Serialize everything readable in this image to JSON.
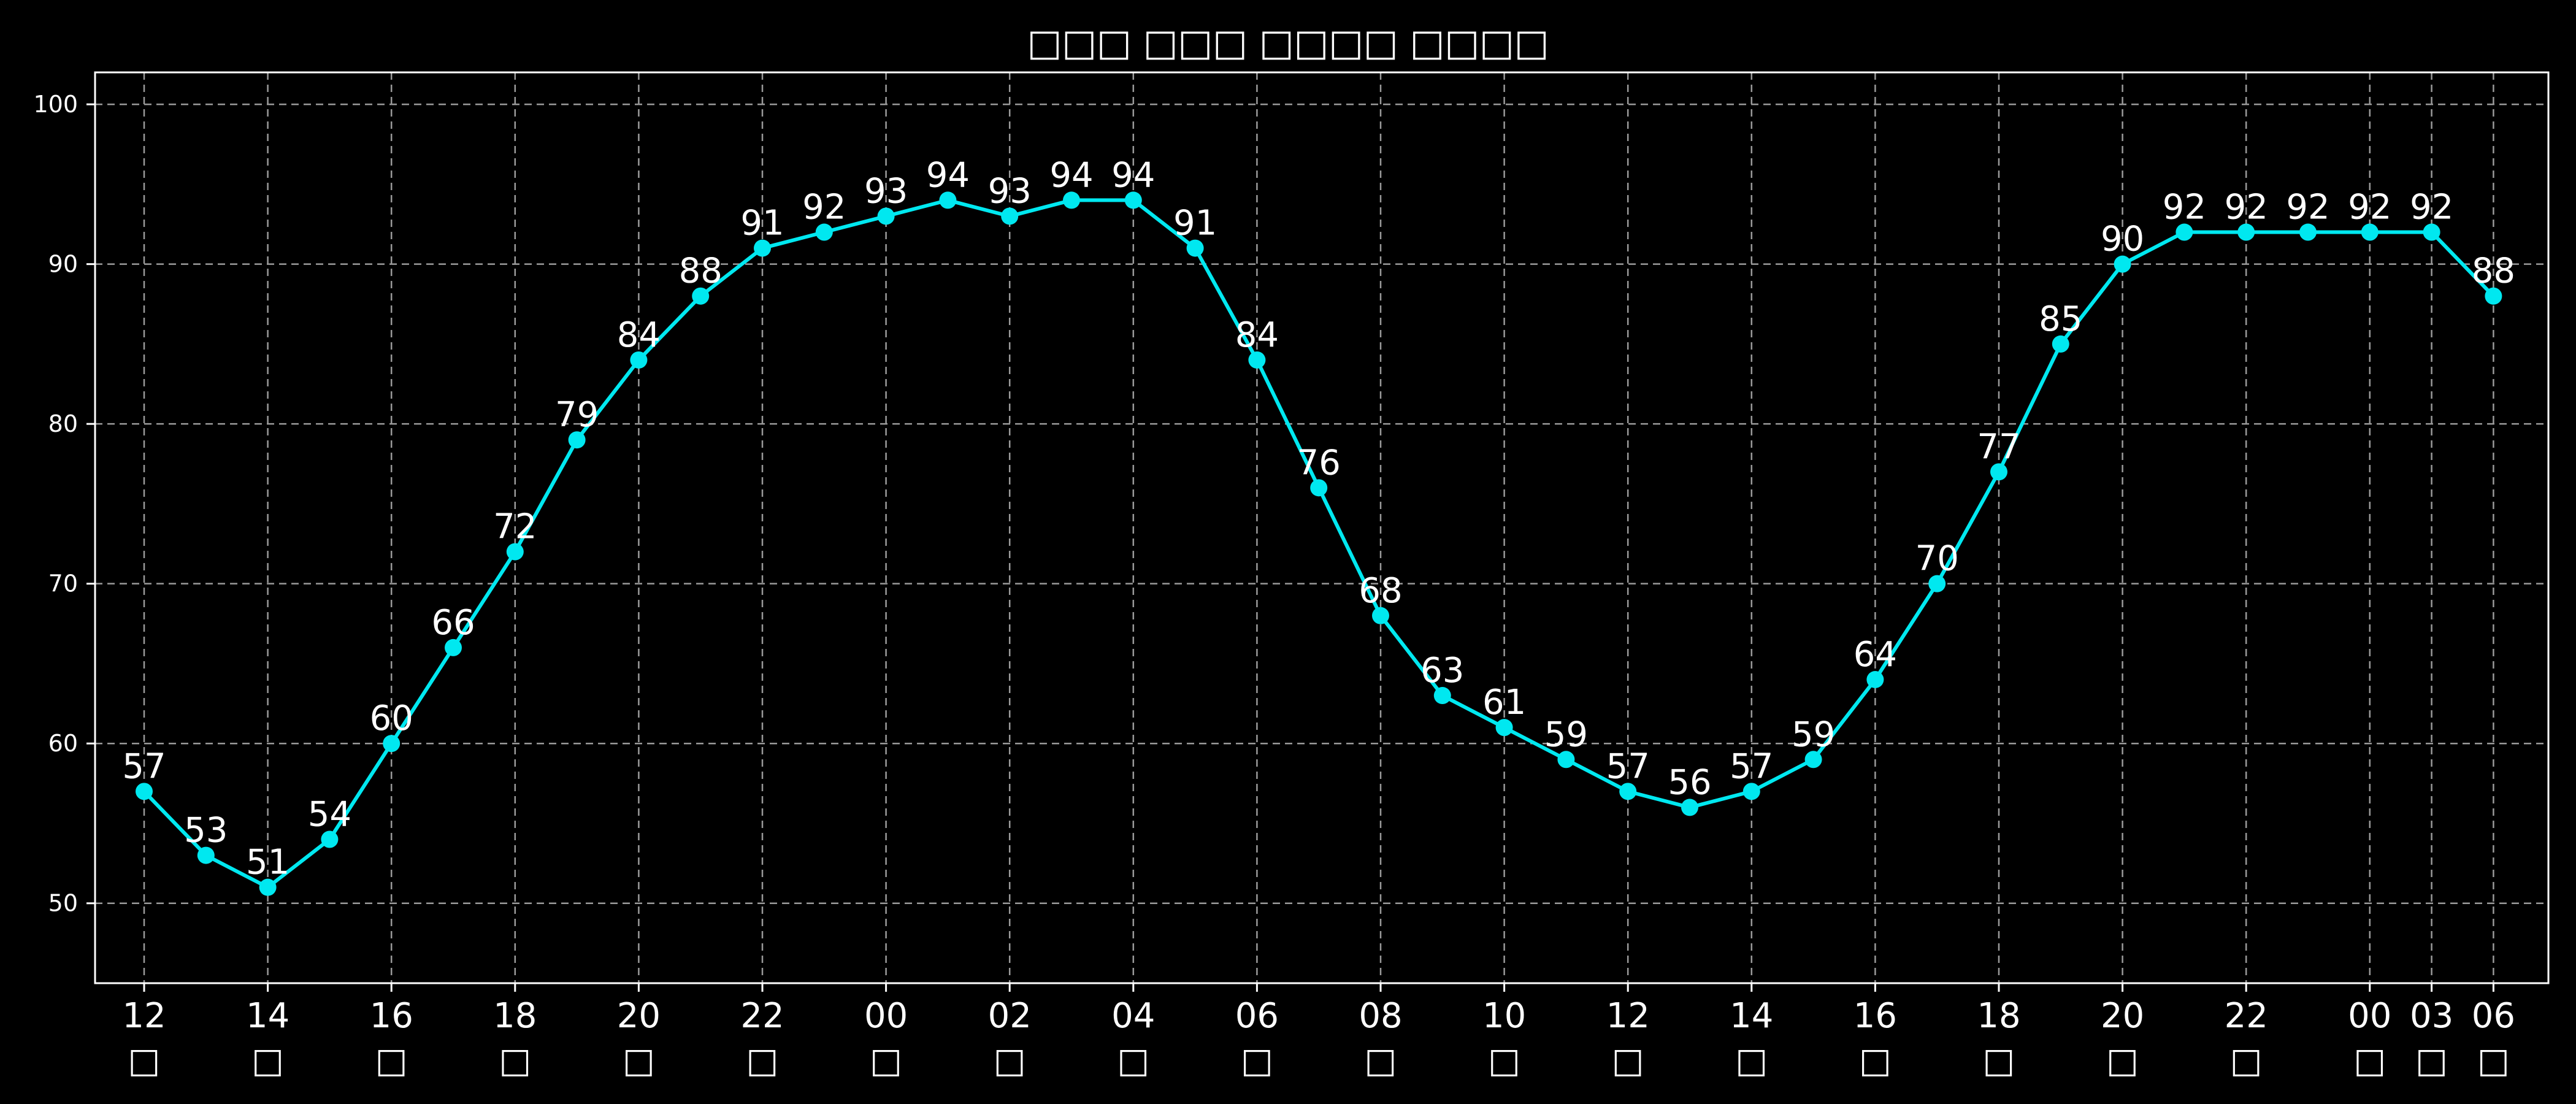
{
  "chart_data": {
    "type": "line",
    "title": "□□□ □□□ □□□□ □□□□",
    "xlabel": "",
    "ylabel": "",
    "ylim": [
      45,
      102
    ],
    "yticks": [
      50,
      60,
      70,
      80,
      90,
      100
    ],
    "grid": true,
    "line_color": "#00e8f0",
    "x_tick_labels": [
      {
        "hour": "12",
        "sub": "□"
      },
      {
        "hour": "14",
        "sub": "□"
      },
      {
        "hour": "16",
        "sub": "□"
      },
      {
        "hour": "18",
        "sub": "□"
      },
      {
        "hour": "20",
        "sub": "□"
      },
      {
        "hour": "22",
        "sub": "□"
      },
      {
        "hour": "00",
        "sub": "□"
      },
      {
        "hour": "02",
        "sub": "□"
      },
      {
        "hour": "04",
        "sub": "□"
      },
      {
        "hour": "06",
        "sub": "□"
      },
      {
        "hour": "08",
        "sub": "□"
      },
      {
        "hour": "10",
        "sub": "□"
      },
      {
        "hour": "12",
        "sub": "□"
      },
      {
        "hour": "14",
        "sub": "□"
      },
      {
        "hour": "16",
        "sub": "□"
      },
      {
        "hour": "18",
        "sub": "□"
      },
      {
        "hour": "20",
        "sub": "□"
      },
      {
        "hour": "22",
        "sub": "□"
      },
      {
        "hour": "00",
        "sub": "□"
      },
      {
        "hour": "03",
        "sub": "□"
      },
      {
        "hour": "06",
        "sub": "□"
      }
    ],
    "values": [
      57,
      53,
      51,
      54,
      60,
      66,
      72,
      79,
      84,
      88,
      91,
      92,
      93,
      94,
      93,
      94,
      94,
      91,
      84,
      76,
      68,
      63,
      61,
      59,
      57,
      56,
      57,
      59,
      64,
      70,
      77,
      85,
      90,
      92,
      92,
      92,
      92,
      92,
      88
    ]
  }
}
